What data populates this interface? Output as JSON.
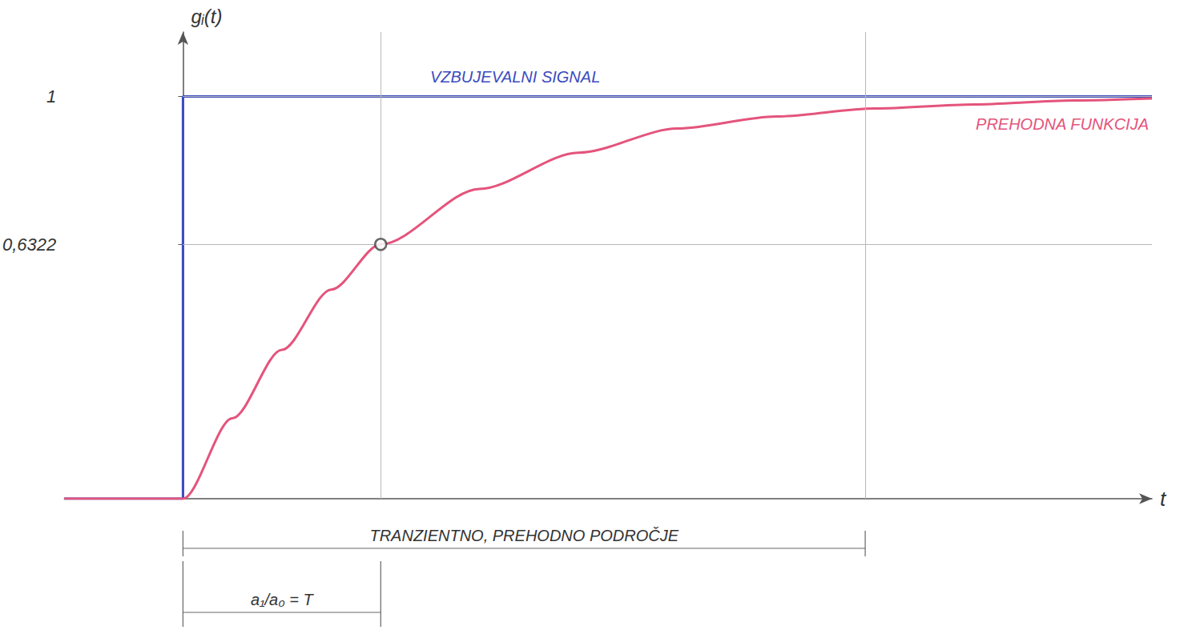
{
  "chart_data": {
    "type": "line",
    "y_label": "gᵢ(t)",
    "x_label": "t",
    "xlim": [
      -0.6,
      4.9
    ],
    "ylim": [
      0,
      1.16
    ],
    "xticks": [
      1,
      3.45
    ],
    "yticks": [
      {
        "value": 0.6322,
        "label": "0,6322"
      },
      1
    ],
    "grid": true,
    "tick_labels": "y",
    "series": [
      {
        "name": "VZBUJEVALNI SIGNAL",
        "color": "#3b4cc0",
        "line_style": "solid",
        "marker": "none",
        "x": [
          -0.6,
          0,
          0,
          4.9
        ],
        "values": [
          0,
          0,
          1,
          1
        ]
      },
      {
        "name": "PREHODNA FUNKCIJA",
        "color": "#e4547c",
        "line_style": "solid",
        "marker": "none",
        "x": [
          -0.6,
          0,
          0.25,
          0.5,
          0.75,
          1,
          1.5,
          2,
          2.5,
          3,
          3.5,
          4,
          4.5,
          4.9
        ],
        "values": [
          0,
          0,
          0.2,
          0.37,
          0.52,
          0.6322,
          0.77,
          0.86,
          0.92,
          0.95,
          0.97,
          0.98,
          0.99,
          0.995
        ]
      }
    ],
    "points": [
      {
        "x": 1,
        "y": 0.6322,
        "marker": "circle"
      }
    ],
    "spans": [
      {
        "label": "TRANZIENTNO, PREHODNO PODROČJE",
        "from": 0,
        "to": 3.45
      },
      {
        "label": "a₁/a₀ = T",
        "from": 0,
        "to": 1
      }
    ]
  }
}
